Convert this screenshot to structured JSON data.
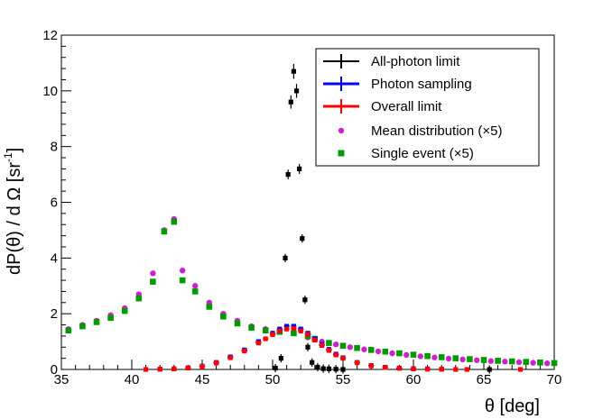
{
  "chart_data": {
    "type": "scatter",
    "xlabel": "θ [deg]",
    "ylabel_main": "dP(θ) / d Ω [sr",
    "ylabel_sup": "-1",
    "ylabel_end": "]",
    "xlim": [
      35,
      70
    ],
    "ylim": [
      0,
      12
    ],
    "xticks": [
      35,
      40,
      45,
      50,
      55,
      60,
      65,
      70
    ],
    "yticks": [
      0,
      2,
      4,
      6,
      8,
      10,
      12
    ],
    "legend_position": "top-right",
    "series": [
      {
        "name": "All-photon limit",
        "color": "#000000",
        "style": "errorbar",
        "points": [
          [
            50.2,
            0.05
          ],
          [
            50.6,
            0.4
          ],
          [
            50.9,
            4.0
          ],
          [
            51.1,
            7.0
          ],
          [
            51.3,
            9.6
          ],
          [
            51.5,
            10.7
          ],
          [
            51.7,
            10.0
          ],
          [
            51.9,
            7.2
          ],
          [
            52.1,
            4.7
          ],
          [
            52.3,
            2.5
          ],
          [
            52.5,
            0.8
          ],
          [
            52.8,
            0.25
          ],
          [
            53.2,
            0.08
          ],
          [
            53.6,
            0.03
          ],
          [
            54.0,
            0.02
          ],
          [
            54.5,
            0.01
          ],
          [
            55.0,
            0.0
          ],
          [
            65.4,
            0.0
          ]
        ]
      },
      {
        "name": "Photon sampling",
        "color": "#0000ff",
        "style": "errorbar",
        "points": [
          [
            42.0,
            0.01
          ],
          [
            43.0,
            0.02
          ],
          [
            44.0,
            0.06
          ],
          [
            45.0,
            0.12
          ],
          [
            46.0,
            0.25
          ],
          [
            47.0,
            0.45
          ],
          [
            48.0,
            0.7
          ],
          [
            49.0,
            1.0
          ],
          [
            50.0,
            1.3
          ],
          [
            50.5,
            1.45
          ],
          [
            51.0,
            1.55
          ],
          [
            51.5,
            1.55
          ],
          [
            52.0,
            1.45
          ],
          [
            52.5,
            1.3
          ],
          [
            53.0,
            1.1
          ],
          [
            53.5,
            0.9
          ],
          [
            54.0,
            0.72
          ],
          [
            54.5,
            0.55
          ],
          [
            55.0,
            0.42
          ],
          [
            56.0,
            0.25
          ],
          [
            57.0,
            0.14
          ],
          [
            58.0,
            0.08
          ],
          [
            59.0,
            0.05
          ],
          [
            60.0,
            0.03
          ],
          [
            61.0,
            0.02
          ],
          [
            62.0,
            0.01
          ]
        ]
      },
      {
        "name": "Overall limit",
        "color": "#ff0000",
        "style": "errorbar",
        "points": [
          [
            41.0,
            0.0
          ],
          [
            42.0,
            0.01
          ],
          [
            43.0,
            0.02
          ],
          [
            44.0,
            0.05
          ],
          [
            45.0,
            0.11
          ],
          [
            46.0,
            0.23
          ],
          [
            47.0,
            0.42
          ],
          [
            48.0,
            0.66
          ],
          [
            49.0,
            0.95
          ],
          [
            49.5,
            1.1
          ],
          [
            50.0,
            1.25
          ],
          [
            50.5,
            1.38
          ],
          [
            51.0,
            1.45
          ],
          [
            51.5,
            1.47
          ],
          [
            52.0,
            1.38
          ],
          [
            52.5,
            1.25
          ],
          [
            53.0,
            1.05
          ],
          [
            53.5,
            0.86
          ],
          [
            54.0,
            0.68
          ],
          [
            54.5,
            0.52
          ],
          [
            55.0,
            0.4
          ],
          [
            56.0,
            0.24
          ],
          [
            57.0,
            0.13
          ],
          [
            58.0,
            0.07
          ],
          [
            59.0,
            0.04
          ],
          [
            60.0,
            0.02
          ],
          [
            61.0,
            0.01
          ],
          [
            62.0,
            0.01
          ],
          [
            63.0,
            0.0
          ],
          [
            63.8,
            0.0
          ],
          [
            67.6,
            0.0
          ]
        ]
      },
      {
        "name": "Mean distribution (×5)",
        "color": "#cc22cc",
        "style": "circle",
        "points": [
          [
            35.5,
            1.45
          ],
          [
            36.5,
            1.6
          ],
          [
            37.5,
            1.75
          ],
          [
            38.5,
            1.95
          ],
          [
            39.5,
            2.2
          ],
          [
            40.5,
            2.7
          ],
          [
            41.5,
            3.45
          ],
          [
            42.3,
            5.0
          ],
          [
            43.0,
            5.4
          ],
          [
            43.6,
            3.55
          ],
          [
            44.5,
            3.0
          ],
          [
            45.5,
            2.4
          ],
          [
            46.5,
            2.0
          ],
          [
            47.5,
            1.75
          ],
          [
            48.5,
            1.55
          ],
          [
            49.5,
            1.45
          ],
          [
            50.5,
            1.35
          ],
          [
            51.5,
            1.3
          ],
          [
            52.5,
            1.15
          ],
          [
            53.5,
            1.0
          ],
          [
            54.5,
            0.9
          ],
          [
            55.5,
            0.8
          ],
          [
            56.5,
            0.72
          ],
          [
            57.5,
            0.65
          ],
          [
            58.5,
            0.58
          ],
          [
            59.5,
            0.52
          ],
          [
            60.5,
            0.47
          ],
          [
            61.5,
            0.43
          ],
          [
            62.5,
            0.39
          ],
          [
            63.5,
            0.36
          ],
          [
            64.5,
            0.33
          ],
          [
            65.5,
            0.3
          ],
          [
            66.5,
            0.28
          ],
          [
            67.5,
            0.26
          ],
          [
            68.5,
            0.24
          ],
          [
            69.5,
            0.22
          ]
        ]
      },
      {
        "name": "Single event (×5)",
        "color": "#009900",
        "style": "square",
        "points": [
          [
            35.5,
            1.4
          ],
          [
            36.5,
            1.55
          ],
          [
            37.5,
            1.7
          ],
          [
            38.5,
            1.85
          ],
          [
            39.5,
            2.1
          ],
          [
            40.5,
            2.55
          ],
          [
            41.5,
            3.15
          ],
          [
            42.3,
            4.95
          ],
          [
            43.0,
            5.3
          ],
          [
            43.6,
            3.2
          ],
          [
            44.5,
            2.8
          ],
          [
            45.5,
            2.25
          ],
          [
            46.5,
            1.9
          ],
          [
            47.5,
            1.65
          ],
          [
            48.5,
            1.5
          ],
          [
            49.5,
            1.4
          ],
          [
            50.5,
            1.35
          ],
          [
            51.5,
            1.3
          ],
          [
            52.5,
            1.2
          ],
          [
            53.0,
            1.1
          ],
          [
            54.0,
            0.95
          ],
          [
            55.0,
            0.85
          ],
          [
            56.0,
            0.77
          ],
          [
            57.0,
            0.7
          ],
          [
            58.0,
            0.64
          ],
          [
            59.0,
            0.58
          ],
          [
            60.0,
            0.53
          ],
          [
            61.0,
            0.48
          ],
          [
            62.0,
            0.44
          ],
          [
            63.0,
            0.4
          ],
          [
            64.0,
            0.37
          ],
          [
            65.0,
            0.34
          ],
          [
            66.0,
            0.31
          ],
          [
            67.0,
            0.29
          ],
          [
            68.0,
            0.27
          ],
          [
            69.0,
            0.25
          ],
          [
            70.0,
            0.23
          ]
        ]
      }
    ]
  }
}
